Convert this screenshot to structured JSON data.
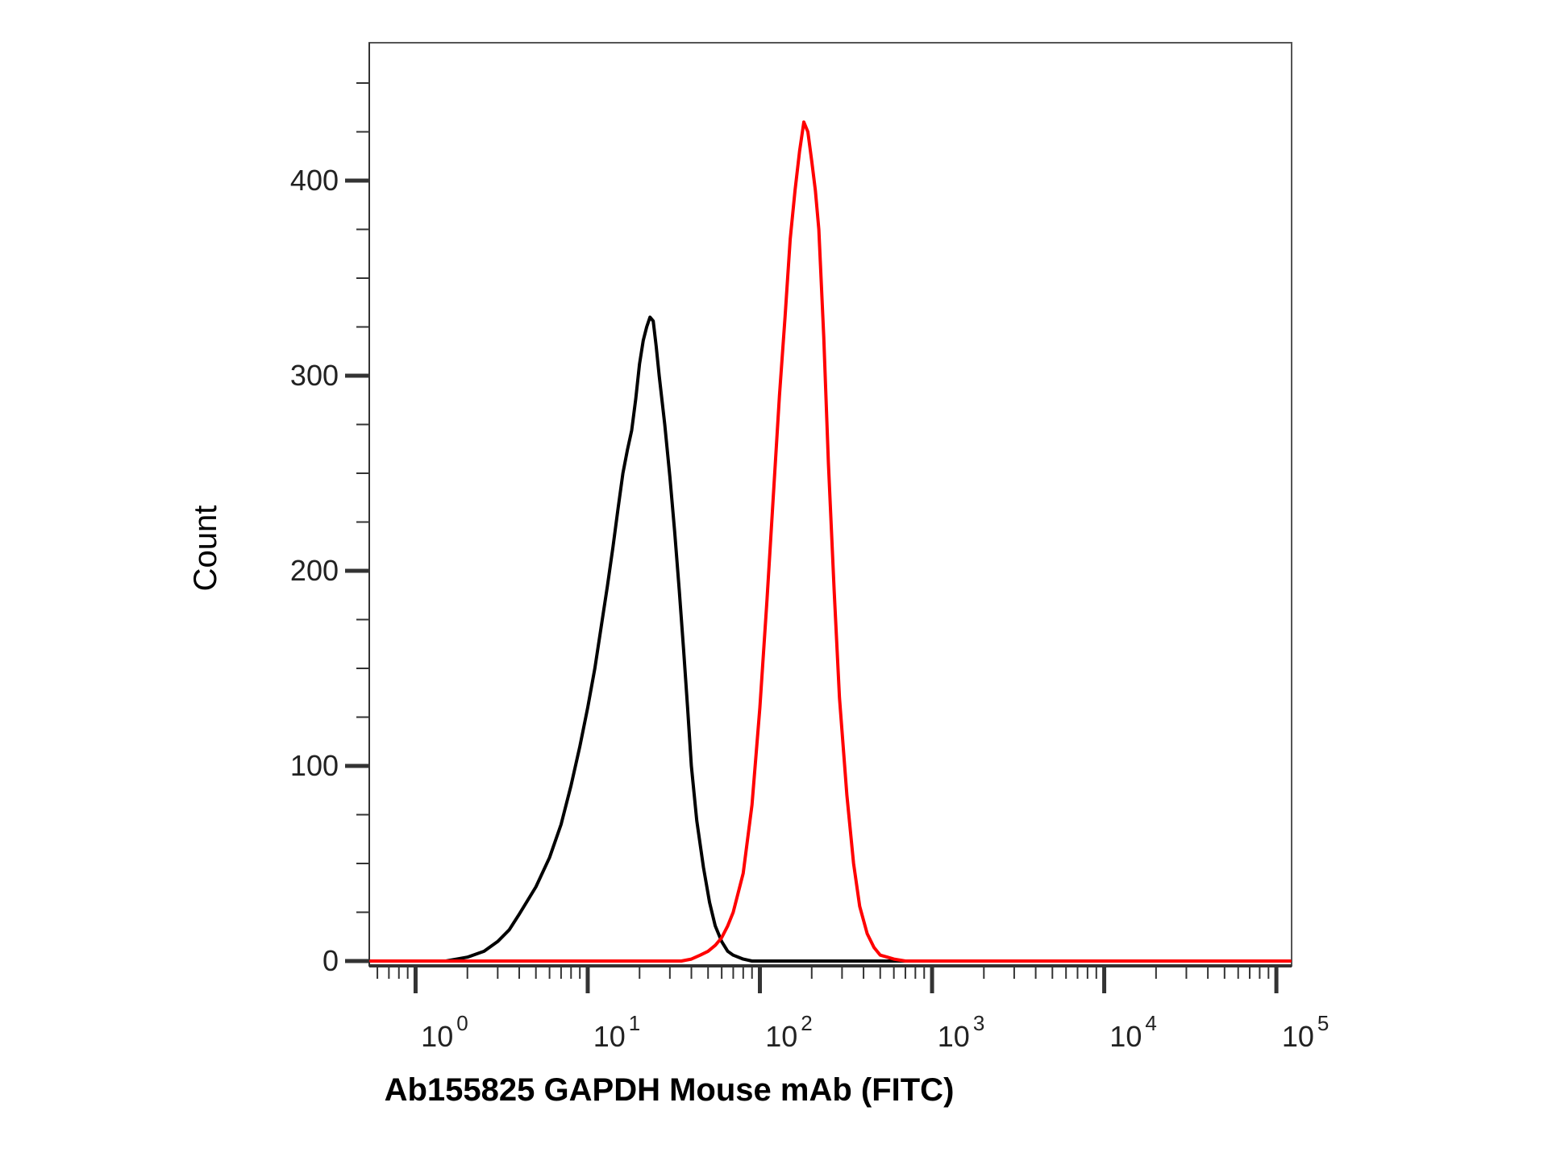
{
  "chart_data": {
    "type": "line",
    "title": "",
    "xlabel": "Ab155825 GAPDH Mouse mAb (FITC)",
    "ylabel": "Count",
    "x_scale": "log",
    "xlim": [
      0.55,
      120000
    ],
    "ylim": [
      -5,
      470
    ],
    "x_ticks": [
      {
        "base": "10",
        "exp": "0",
        "value": 1
      },
      {
        "base": "10",
        "exp": "1",
        "value": 10
      },
      {
        "base": "10",
        "exp": "2",
        "value": 100
      },
      {
        "base": "10",
        "exp": "3",
        "value": 1000
      },
      {
        "base": "10",
        "exp": "4",
        "value": 10000
      },
      {
        "base": "10",
        "exp": "5",
        "value": 100000
      }
    ],
    "y_ticks": [
      {
        "label": "0",
        "value": 0
      },
      {
        "label": "100",
        "value": 100
      },
      {
        "label": "200",
        "value": 200
      },
      {
        "label": "300",
        "value": 300
      },
      {
        "label": "400",
        "value": 400
      }
    ],
    "grid": false,
    "legend": "none",
    "series": [
      {
        "color": "#000000",
        "x": [
          0.55,
          1.5,
          2.0,
          2.5,
          3.0,
          3.5,
          4.0,
          5.0,
          6.0,
          7.0,
          8.0,
          9.0,
          10.0,
          11.0,
          12.0,
          13.0,
          14.0,
          15.0,
          16.0,
          17.0,
          18.0,
          19.0,
          20.0,
          21.0,
          22.0,
          23.0,
          24.0,
          25.0,
          26.0,
          28.0,
          30.0,
          32.0,
          34.0,
          36.0,
          38.0,
          40.0,
          43.0,
          47.0,
          51.0,
          55.0,
          60.0,
          65.0,
          70.0,
          80.0,
          90.0,
          100.0,
          120.0,
          150.0,
          200.0,
          120000
        ],
        "y": [
          0,
          0,
          2,
          5,
          10,
          16,
          24,
          38,
          53,
          70,
          90,
          110,
          130,
          150,
          172,
          192,
          212,
          232,
          250,
          262,
          272,
          288,
          306,
          318,
          325,
          330,
          328,
          315,
          300,
          275,
          248,
          220,
          190,
          160,
          130,
          100,
          72,
          48,
          30,
          18,
          10,
          5,
          3,
          1,
          0,
          0,
          0,
          0,
          0,
          0
        ]
      },
      {
        "color": "#ff0000",
        "x": [
          0.55,
          35.0,
          40.0,
          45.0,
          50.0,
          55.0,
          60.0,
          65.0,
          70.0,
          80.0,
          90.0,
          100.0,
          110.0,
          120.0,
          130.0,
          140.0,
          150.0,
          160.0,
          170.0,
          180.0,
          190.0,
          200.0,
          210.0,
          220.0,
          235.0,
          250.0,
          270.0,
          290.0,
          320.0,
          350.0,
          380.0,
          420.0,
          460.0,
          500.0,
          550.0,
          600.0,
          700.0,
          800.0,
          1000.0,
          120000
        ],
        "y": [
          0,
          0,
          1,
          3,
          5,
          8,
          12,
          18,
          25,
          45,
          80,
          130,
          185,
          240,
          290,
          330,
          370,
          395,
          415,
          430,
          425,
          410,
          395,
          375,
          320,
          255,
          190,
          135,
          85,
          50,
          28,
          14,
          7,
          3,
          2,
          1,
          0,
          0,
          0,
          0
        ]
      }
    ]
  }
}
